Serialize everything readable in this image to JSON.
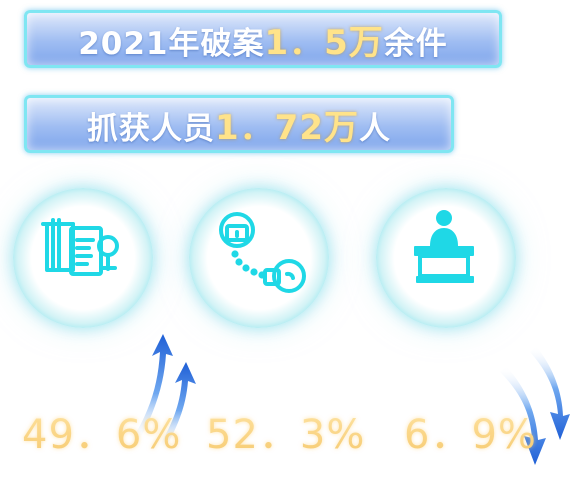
{
  "banners": [
    {
      "prefix": "2021年破案",
      "number": "1．5万",
      "suffix": "余件"
    },
    {
      "prefix": "抓获人员",
      "number": "1．72万",
      "suffix": "人"
    }
  ],
  "stats": [
    {
      "icon": "case-files-icon",
      "value": "49．6%",
      "trend": "up"
    },
    {
      "icon": "handcuffs-icon",
      "value": "52．3%",
      "trend": "none"
    },
    {
      "icon": "court-podium-icon",
      "value": "6．9%",
      "trend": "down"
    }
  ],
  "colors": {
    "banner_fill": "#9fbdf2",
    "banner_border": "#7fe6f2",
    "highlight": "#ffe38a",
    "circle_ring": "#20b3c8",
    "icon": "#1fd8e6",
    "percent": "#f2c56a",
    "arrow": "#2d7be0"
  }
}
